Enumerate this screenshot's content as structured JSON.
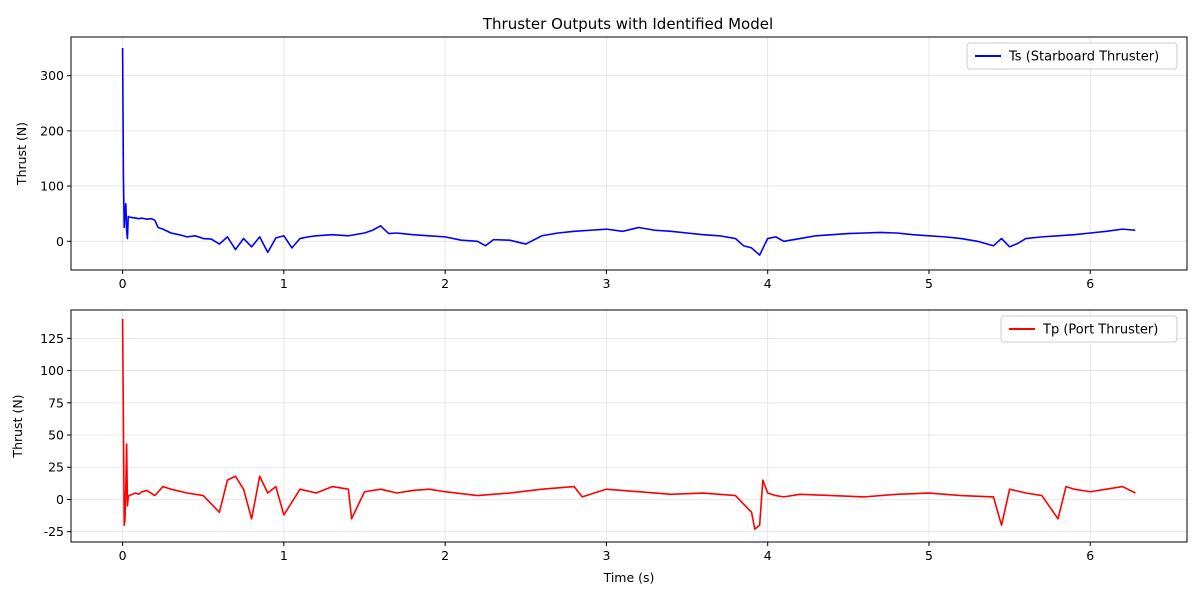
{
  "figure": {
    "title": "Thruster Outputs with Identified Model"
  },
  "chart_data": [
    {
      "type": "line",
      "title": "Thruster Outputs with Identified Model",
      "xlabel": "",
      "ylabel": "Thrust (N)",
      "xlim": [
        -0.32,
        6.6
      ],
      "ylim": [
        -52,
        370
      ],
      "xticks": [
        0,
        1,
        2,
        3,
        4,
        5,
        6
      ],
      "yticks": [
        0,
        100,
        200,
        300
      ],
      "grid": true,
      "legend_position": "top-right",
      "series": [
        {
          "name": "Ts (Starboard Thruster)",
          "color": "#0000ff",
          "x": [
            0,
            0.005,
            0.01,
            0.015,
            0.02,
            0.025,
            0.03,
            0.035,
            0.04,
            0.06,
            0.08,
            0.1,
            0.12,
            0.15,
            0.18,
            0.2,
            0.22,
            0.25,
            0.3,
            0.35,
            0.4,
            0.45,
            0.5,
            0.55,
            0.6,
            0.65,
            0.7,
            0.75,
            0.8,
            0.85,
            0.9,
            0.95,
            1.0,
            1.05,
            1.1,
            1.15,
            1.2,
            1.3,
            1.4,
            1.5,
            1.55,
            1.6,
            1.65,
            1.7,
            1.8,
            1.9,
            2.0,
            2.1,
            2.2,
            2.25,
            2.3,
            2.4,
            2.5,
            2.6,
            2.7,
            2.8,
            2.9,
            3.0,
            3.1,
            3.2,
            3.3,
            3.4,
            3.5,
            3.6,
            3.7,
            3.8,
            3.85,
            3.9,
            3.95,
            4.0,
            4.05,
            4.1,
            4.2,
            4.3,
            4.4,
            4.5,
            4.6,
            4.7,
            4.8,
            4.9,
            5.0,
            5.1,
            5.2,
            5.3,
            5.4,
            5.45,
            5.5,
            5.55,
            5.6,
            5.7,
            5.8,
            5.9,
            6.0,
            6.1,
            6.2,
            6.28
          ],
          "y": [
            350,
            120,
            25,
            55,
            68,
            20,
            5,
            45,
            44,
            43,
            42,
            41,
            42,
            40,
            41,
            38,
            25,
            22,
            15,
            12,
            8,
            10,
            5,
            4,
            -5,
            8,
            -15,
            5,
            -10,
            8,
            -20,
            6,
            10,
            -12,
            5,
            8,
            10,
            12,
            10,
            15,
            20,
            28,
            14,
            15,
            12,
            10,
            8,
            2,
            0,
            -8,
            3,
            2,
            -5,
            10,
            15,
            18,
            20,
            22,
            18,
            25,
            20,
            18,
            15,
            12,
            10,
            5,
            -8,
            -12,
            -25,
            5,
            8,
            0,
            5,
            10,
            12,
            14,
            15,
            16,
            15,
            12,
            10,
            8,
            5,
            0,
            -8,
            5,
            -10,
            -4,
            5,
            8,
            10,
            12,
            15,
            18,
            22,
            20
          ]
        }
      ]
    },
    {
      "type": "line",
      "title": "",
      "xlabel": "Time (s)",
      "ylabel": "Thrust (N)",
      "xlim": [
        -0.32,
        6.6
      ],
      "ylim": [
        -33,
        147
      ],
      "xticks": [
        0,
        1,
        2,
        3,
        4,
        5,
        6
      ],
      "yticks": [
        -25,
        0,
        25,
        50,
        75,
        100,
        125
      ],
      "grid": true,
      "legend_position": "top-right",
      "series": [
        {
          "name": "Tp (Port Thruster)",
          "color": "#ff0000",
          "x": [
            0,
            0.005,
            0.01,
            0.015,
            0.02,
            0.025,
            0.03,
            0.035,
            0.04,
            0.06,
            0.08,
            0.1,
            0.12,
            0.15,
            0.2,
            0.25,
            0.3,
            0.4,
            0.5,
            0.6,
            0.65,
            0.7,
            0.75,
            0.8,
            0.85,
            0.9,
            0.95,
            1.0,
            1.1,
            1.2,
            1.3,
            1.4,
            1.42,
            1.5,
            1.6,
            1.7,
            1.8,
            1.9,
            2.0,
            2.2,
            2.4,
            2.6,
            2.8,
            2.85,
            3.0,
            3.2,
            3.4,
            3.6,
            3.8,
            3.9,
            3.92,
            3.95,
            3.97,
            4.0,
            4.05,
            4.1,
            4.2,
            4.4,
            4.6,
            4.8,
            5.0,
            5.2,
            5.4,
            5.45,
            5.5,
            5.6,
            5.7,
            5.8,
            5.85,
            5.9,
            6.0,
            6.1,
            6.2,
            6.28
          ],
          "y": [
            140,
            60,
            -20,
            -15,
            10,
            43,
            -5,
            2,
            3,
            4,
            5,
            4,
            6,
            7,
            3,
            10,
            8,
            5,
            3,
            -10,
            15,
            18,
            8,
            -15,
            18,
            5,
            10,
            -12,
            8,
            5,
            10,
            8,
            -15,
            6,
            8,
            5,
            7,
            8,
            6,
            3,
            5,
            8,
            10,
            2,
            8,
            6,
            4,
            5,
            3,
            -10,
            -23,
            -20,
            15,
            5,
            3,
            2,
            4,
            3,
            2,
            4,
            5,
            3,
            2,
            -20,
            8,
            5,
            3,
            -15,
            10,
            8,
            6,
            8,
            10,
            5
          ]
        }
      ]
    }
  ]
}
